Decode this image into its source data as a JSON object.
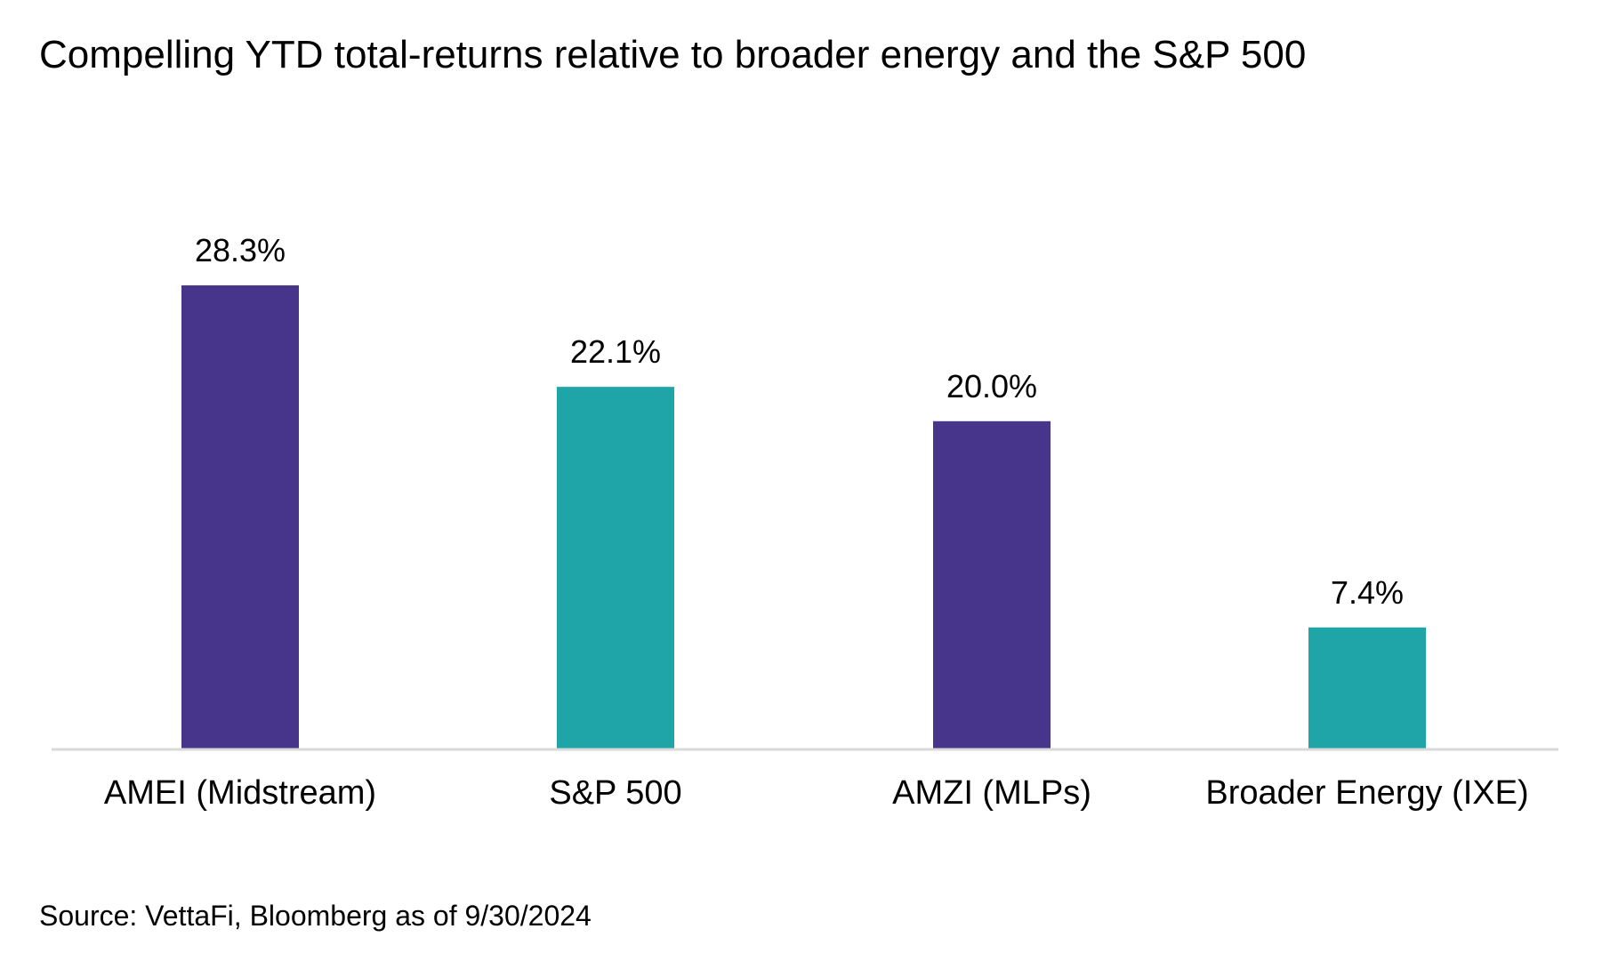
{
  "chart_data": {
    "type": "bar",
    "title": "Compelling YTD total-returns relative to broader energy and the S&P 500",
    "categories": [
      "AMEI (Midstream)",
      "S&P 500",
      "AMZI (MLPs)",
      "Broader Energy (IXE)"
    ],
    "values": [
      28.3,
      22.1,
      20.0,
      7.4
    ],
    "data_labels": [
      "28.3%",
      "22.1%",
      "20.0%",
      "7.4%"
    ],
    "bar_colors": [
      "#46358A",
      "#1FA5A8",
      "#46358A",
      "#1FA5A8"
    ],
    "xlabel": "",
    "ylabel": "",
    "unit": "%",
    "ylim": [
      0,
      28.3
    ],
    "grid": false,
    "legend": "none",
    "baseline_color": "#D9D9D9"
  },
  "footer": {
    "source": "Source: VettaFi, Bloomberg as of 9/30/2024"
  }
}
